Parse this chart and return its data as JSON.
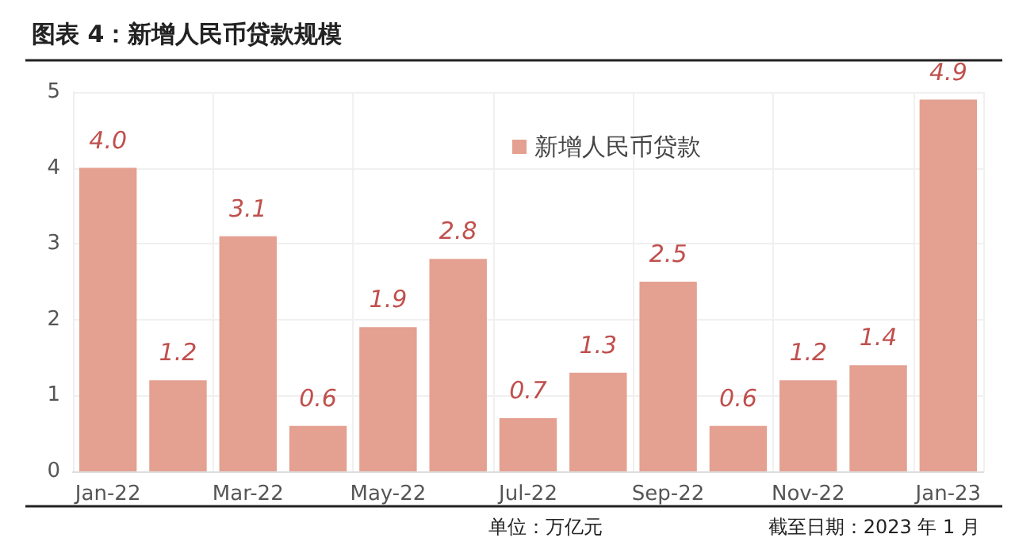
{
  "chart_data": {
    "type": "bar",
    "title": "图表 4：新增人民币贷款规模",
    "categories": [
      "Jan-22",
      null,
      "Mar-22",
      null,
      "May-22",
      null,
      "Jul-22",
      null,
      "Sep-22",
      null,
      "Nov-22",
      null,
      "Jan-23"
    ],
    "series": [
      {
        "name": "新增人民币贷款",
        "color": "#e4a090",
        "values": [
          4.0,
          1.2,
          3.1,
          0.6,
          1.9,
          2.8,
          0.7,
          1.3,
          2.5,
          0.6,
          1.2,
          1.4,
          4.9
        ],
        "value_labels": [
          "4.0",
          "1.2",
          "3.1",
          "0.6",
          "1.9",
          "2.8",
          "0.7",
          "1.3",
          "2.5",
          "0.6",
          "1.2",
          "1.4",
          "4.9"
        ]
      }
    ],
    "ylim": [
      0,
      5
    ],
    "yticks": [
      0,
      1,
      2,
      3,
      4,
      5
    ],
    "grid": true,
    "legend": "top",
    "annotations": [
      "单位：万亿元",
      "截至日期：2023 年 1 月"
    ]
  }
}
